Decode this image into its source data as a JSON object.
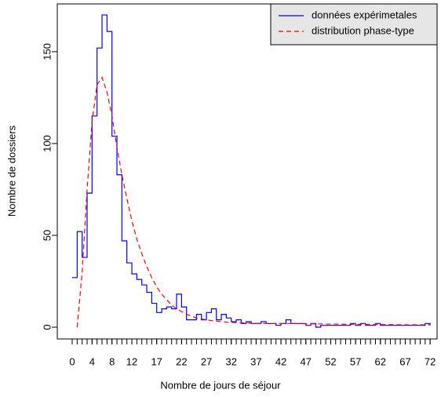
{
  "chart_data": {
    "type": "line",
    "x_label": "Nombre de jours de séjour",
    "y_label": "Nombre de dossiers",
    "x": [
      0,
      1,
      2,
      3,
      4,
      5,
      6,
      7,
      8,
      9,
      10,
      11,
      12,
      13,
      14,
      15,
      16,
      17,
      18,
      19,
      20,
      21,
      22,
      23,
      24,
      25,
      26,
      27,
      28,
      29,
      30,
      31,
      32,
      33,
      34,
      35,
      36,
      37,
      38,
      39,
      40,
      41,
      42,
      43,
      44,
      45,
      46,
      47,
      48,
      49,
      50,
      51,
      52,
      53,
      54,
      55,
      56,
      57,
      58,
      59,
      60,
      61,
      62,
      63,
      64,
      65,
      66,
      67,
      68,
      69,
      70,
      71,
      72
    ],
    "series": [
      {
        "name": "données expérimetales",
        "color": "#0000ff",
        "dash": false,
        "step": true,
        "values": [
          27,
          52,
          38,
          73,
          115,
          152,
          170,
          161,
          104,
          83,
          47,
          35,
          29,
          26,
          23,
          19,
          13,
          8,
          10,
          11,
          10,
          18,
          11,
          4,
          4,
          7,
          4,
          8,
          10,
          4,
          7,
          5,
          3,
          4,
          2,
          3,
          2,
          2,
          3,
          2,
          2,
          1,
          2,
          4,
          2,
          2,
          2,
          1,
          2,
          0,
          1,
          1,
          1,
          1,
          1,
          1,
          2,
          1,
          2,
          1,
          1,
          2,
          1,
          1,
          1,
          1,
          1,
          1,
          1,
          1,
          1,
          2,
          1
        ]
      },
      {
        "name": "distribution phase-type",
        "color": "#ff0000",
        "dash": true,
        "step": false,
        "values": [
          null,
          0,
          30,
          75,
          112,
          132,
          136,
          128,
          115,
          98,
          83,
          70,
          58,
          48,
          40,
          33,
          27,
          22,
          18,
          15,
          12,
          10,
          8.5,
          7,
          6,
          5,
          4.5,
          4,
          3.6,
          3.3,
          3,
          2.8,
          2.6,
          2.5,
          2.4,
          2.3,
          2.2,
          2.1,
          2,
          2,
          2,
          2,
          2,
          2,
          2,
          2,
          1.9,
          1.9,
          1.8,
          1.8,
          1.8,
          1.7,
          1.7,
          1.7,
          1.6,
          1.6,
          1.6,
          1.5,
          1.5,
          1.5,
          1.5,
          1.4,
          1.4,
          1.4,
          1.4,
          1.4,
          1.3,
          1.3,
          1.3,
          1.3,
          1.3,
          1.3,
          1.3
        ]
      }
    ],
    "xlim": [
      -3,
      73.4
    ],
    "ylim": [
      -6.4,
      176
    ],
    "xticks": [
      0,
      4,
      8,
      12,
      17,
      22,
      27,
      32,
      37,
      42,
      47,
      52,
      57,
      62,
      67,
      72
    ],
    "yticks": [
      0,
      50,
      100,
      150
    ],
    "legend": "top-right"
  }
}
